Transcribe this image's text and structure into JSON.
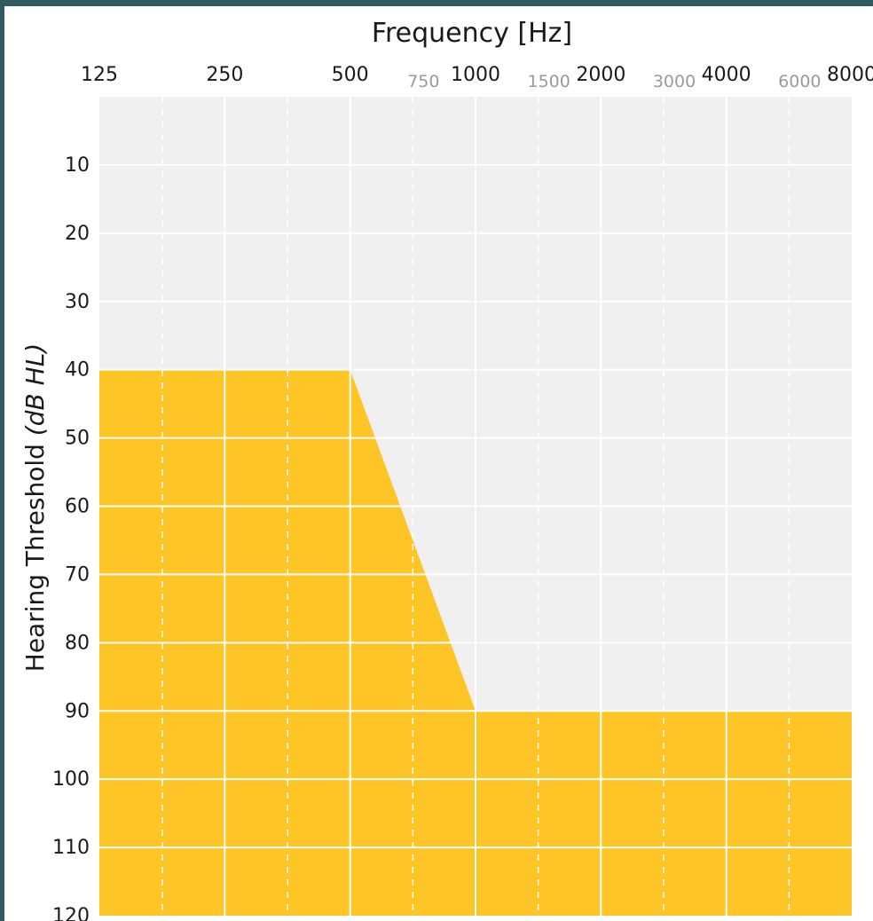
{
  "chart_data": {
    "type": "area",
    "x_label": "Frequency [Hz]",
    "y_label_plain": "Hearing Threshold ",
    "y_label_italic": "(dB HL)",
    "x_scale": "log2",
    "y_inverted": true,
    "xlim": [
      125,
      8000
    ],
    "ylim": [
      0,
      120
    ],
    "x_ticks_major": [
      {
        "value": 125,
        "label": "125"
      },
      {
        "value": 250,
        "label": "250"
      },
      {
        "value": 500,
        "label": "500"
      },
      {
        "value": 1000,
        "label": "1000"
      },
      {
        "value": 2000,
        "label": "2000"
      },
      {
        "value": 4000,
        "label": "4000"
      },
      {
        "value": 8000,
        "label": "8000"
      }
    ],
    "x_ticks_minor": [
      {
        "value": 750,
        "label": "750"
      },
      {
        "value": 1500,
        "label": "1500"
      },
      {
        "value": 3000,
        "label": "3000"
      },
      {
        "value": 6000,
        "label": "6000"
      }
    ],
    "x_grid_dashed": [
      177,
      354,
      707,
      1414,
      2828,
      5657
    ],
    "y_ticks": [
      {
        "value": 10,
        "label": "10"
      },
      {
        "value": 20,
        "label": "20"
      },
      {
        "value": 30,
        "label": "30"
      },
      {
        "value": 40,
        "label": "40"
      },
      {
        "value": 50,
        "label": "50"
      },
      {
        "value": 60,
        "label": "60"
      },
      {
        "value": 70,
        "label": "70"
      },
      {
        "value": 80,
        "label": "80"
      },
      {
        "value": 90,
        "label": "90"
      },
      {
        "value": 100,
        "label": "100"
      },
      {
        "value": 110,
        "label": "110"
      },
      {
        "value": 120,
        "label": "120"
      }
    ],
    "area": {
      "points": [
        {
          "x": 125,
          "y": 40
        },
        {
          "x": 500,
          "y": 40
        },
        {
          "x": 1000,
          "y": 90
        },
        {
          "x": 8000,
          "y": 90
        }
      ],
      "fill_to": 120
    },
    "grid": true,
    "colors": {
      "plot_background": "#f0f0f0",
      "area_fill": "#ffc425",
      "grid_line": "#ffffff",
      "minor_tick_text": "#9a9a9a",
      "frame": "#2e5a60"
    }
  }
}
